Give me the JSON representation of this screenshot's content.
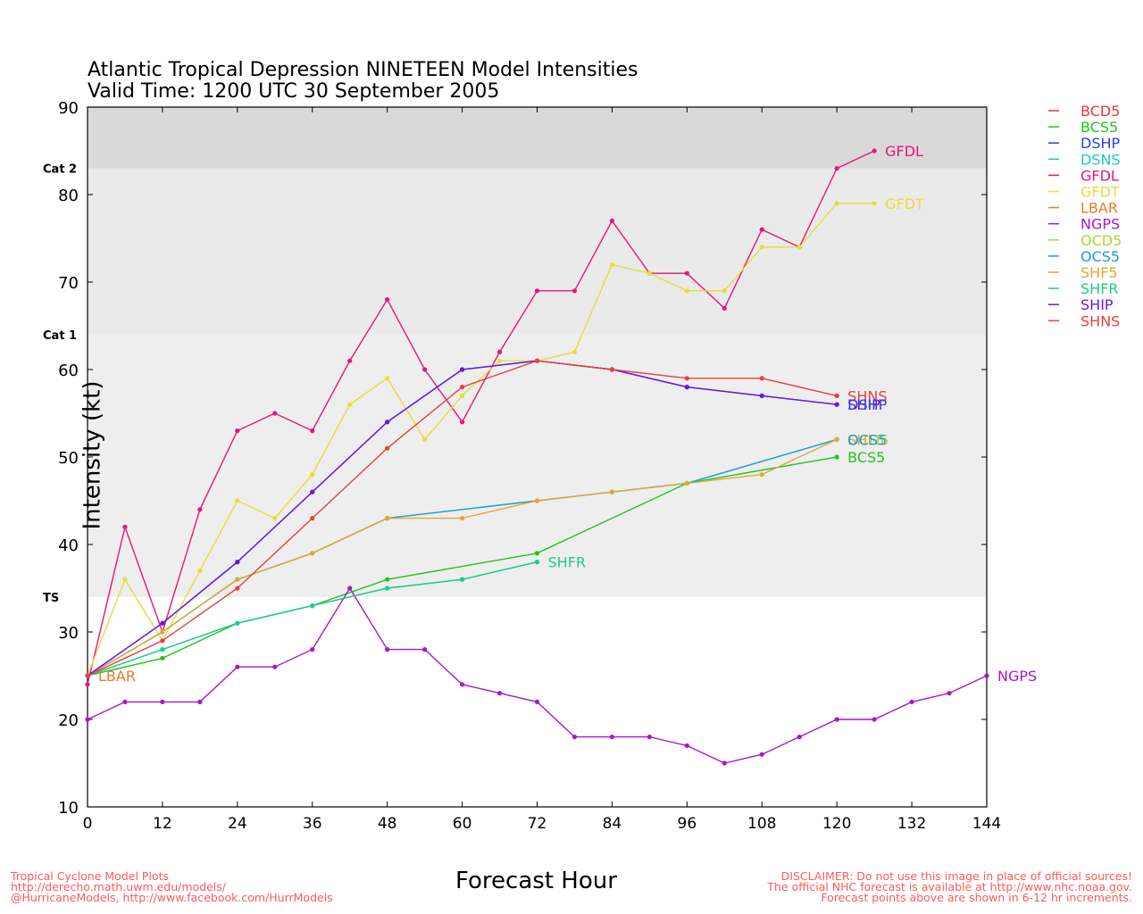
{
  "chart_data": {
    "type": "line",
    "title": "Atlantic Tropical Depression NINETEEN Model Intensities",
    "subtitle": "Valid Time: 1200 UTC 30 September 2005",
    "xlabel": "Forecast Hour",
    "ylabel": "Intensity (kt)",
    "xlim": [
      0,
      144
    ],
    "ylim": [
      10,
      90
    ],
    "xticks": [
      0,
      12,
      24,
      36,
      48,
      60,
      72,
      84,
      96,
      108,
      120,
      132,
      144
    ],
    "yticks": [
      10,
      20,
      30,
      40,
      50,
      60,
      70,
      80,
      90
    ],
    "bands": [
      {
        "label": "TS",
        "from": 34,
        "to": 64,
        "color": "#eeeeee"
      },
      {
        "label": "Cat 1",
        "from": 64,
        "to": 83,
        "color": "#eaeaea"
      },
      {
        "label": "Cat 2",
        "from": 83,
        "to": 90,
        "color": "#d9d9d9"
      }
    ],
    "legend_position": "right",
    "series": [
      {
        "name": "BCD5",
        "color": "#e8343c",
        "x": [
          0
        ],
        "y": [
          25
        ]
      },
      {
        "name": "BCS5",
        "color": "#22c41e",
        "x": [
          0,
          12,
          24,
          36,
          48,
          72,
          96,
          120
        ],
        "y": [
          25,
          27,
          31,
          33,
          36,
          39,
          47,
          50
        ]
      },
      {
        "name": "DSHP",
        "color": "#2740e8",
        "x": [
          0,
          12,
          24,
          36,
          48,
          60,
          72,
          84,
          96,
          108,
          120
        ],
        "y": [
          25,
          31,
          38,
          46,
          54,
          60,
          61,
          60,
          58,
          57,
          56
        ]
      },
      {
        "name": "DSNS",
        "color": "#1ec8c8",
        "x": [
          0,
          12,
          24,
          36,
          48,
          60,
          72
        ],
        "y": [
          25,
          28,
          31,
          33,
          35,
          36,
          38
        ]
      },
      {
        "name": "GFDL",
        "color": "#e8157a",
        "x": [
          0,
          6,
          12,
          18,
          24,
          30,
          36,
          42,
          48,
          54,
          60,
          66,
          72,
          78,
          84,
          90,
          96,
          102,
          108,
          114,
          120,
          126
        ],
        "y": [
          24,
          42,
          30,
          44,
          53,
          55,
          53,
          61,
          68,
          60,
          54,
          62,
          69,
          69,
          77,
          71,
          71,
          67,
          76,
          74,
          83,
          85
        ]
      },
      {
        "name": "GFDT",
        "color": "#e8dc3a",
        "x": [
          0,
          6,
          12,
          18,
          24,
          30,
          36,
          42,
          48,
          54,
          60,
          66,
          72,
          78,
          84,
          90,
          96,
          102,
          108,
          114,
          120,
          126
        ],
        "y": [
          25,
          36,
          29,
          37,
          45,
          43,
          48,
          56,
          59,
          52,
          57,
          61,
          61,
          62,
          72,
          71,
          69,
          69,
          74,
          74,
          79,
          79
        ]
      },
      {
        "name": "LBAR",
        "color": "#e87a2a",
        "x": [
          0
        ],
        "y": [
          25
        ]
      },
      {
        "name": "NGPS",
        "color": "#a818c8",
        "x": [
          0,
          6,
          12,
          18,
          24,
          30,
          36,
          42,
          48,
          54,
          60,
          66,
          72,
          78,
          84,
          90,
          96,
          102,
          108,
          114,
          120,
          126,
          132,
          138,
          144
        ],
        "y": [
          20,
          22,
          22,
          22,
          26,
          26,
          28,
          35,
          28,
          28,
          24,
          23,
          22,
          18,
          18,
          18,
          17,
          15,
          16,
          18,
          20,
          20,
          22,
          23,
          25
        ]
      },
      {
        "name": "OCD5",
        "color": "#a8d83a",
        "x": [
          0,
          12,
          24,
          36,
          48,
          72,
          84,
          96,
          120
        ],
        "y": [
          25,
          30,
          36,
          39,
          43,
          45,
          46,
          47,
          52
        ]
      },
      {
        "name": "OCS5",
        "color": "#1a9ce0",
        "x": [
          0,
          12,
          24,
          36,
          48,
          72,
          84,
          96,
          120
        ],
        "y": [
          25,
          30,
          36,
          39,
          43,
          45,
          46,
          47,
          52
        ]
      },
      {
        "name": "SHF5",
        "color": "#e0a83a",
        "x": [
          0,
          12,
          24,
          36,
          48,
          60,
          72,
          84,
          96,
          108,
          120
        ],
        "y": [
          25,
          30,
          36,
          39,
          43,
          43,
          45,
          46,
          47,
          48,
          52
        ]
      },
      {
        "name": "SHFR",
        "color": "#1ecc8c",
        "x": [
          0,
          12,
          24,
          36,
          48,
          60,
          72
        ],
        "y": [
          25,
          28,
          31,
          33,
          35,
          36,
          38
        ]
      },
      {
        "name": "SHIP",
        "color": "#6a18d8",
        "x": [
          0,
          12,
          24,
          36,
          48,
          60,
          72,
          84,
          96,
          108,
          120
        ],
        "y": [
          25,
          31,
          38,
          46,
          54,
          60,
          61,
          60,
          58,
          57,
          56
        ]
      },
      {
        "name": "SHNS",
        "color": "#e84040",
        "x": [
          0,
          12,
          24,
          36,
          48,
          60,
          72,
          84,
          96,
          108,
          120
        ],
        "y": [
          25,
          29,
          35,
          43,
          51,
          58,
          61,
          60,
          59,
          59,
          57
        ]
      }
    ],
    "end_labels": [
      {
        "series": "GFDL",
        "text": "GFDL"
      },
      {
        "series": "GFDT",
        "text": "GFDT"
      },
      {
        "series": "SHNS",
        "text": "SHNS"
      },
      {
        "series": "SHIP",
        "text": "SHIP"
      },
      {
        "series": "DSHP",
        "text": "DSHP"
      },
      {
        "series": "SHF5",
        "text": "SHF5"
      },
      {
        "series": "OCD5",
        "text": "OCD5"
      },
      {
        "series": "OCS5",
        "text": "OCS5"
      },
      {
        "series": "BCS5",
        "text": "BCS5"
      },
      {
        "series": "SHFR",
        "text": "SHFR"
      },
      {
        "series": "NGPS",
        "text": "NGPS"
      },
      {
        "series": "LBAR",
        "text": "LBAR"
      }
    ]
  },
  "footer": {
    "left": "Tropical Cyclone Model Plots\nhttp://derecho.math.uwm.edu/models/\n@HurricaneModels, http://www.facebook.com/HurrModels",
    "right": "DISCLAIMER: Do not use this image in place of official sources!\nThe official NHC forecast is available at http://www.nhc.noaa.gov.\nForecast points above are shown in 6-12 hr increments."
  }
}
